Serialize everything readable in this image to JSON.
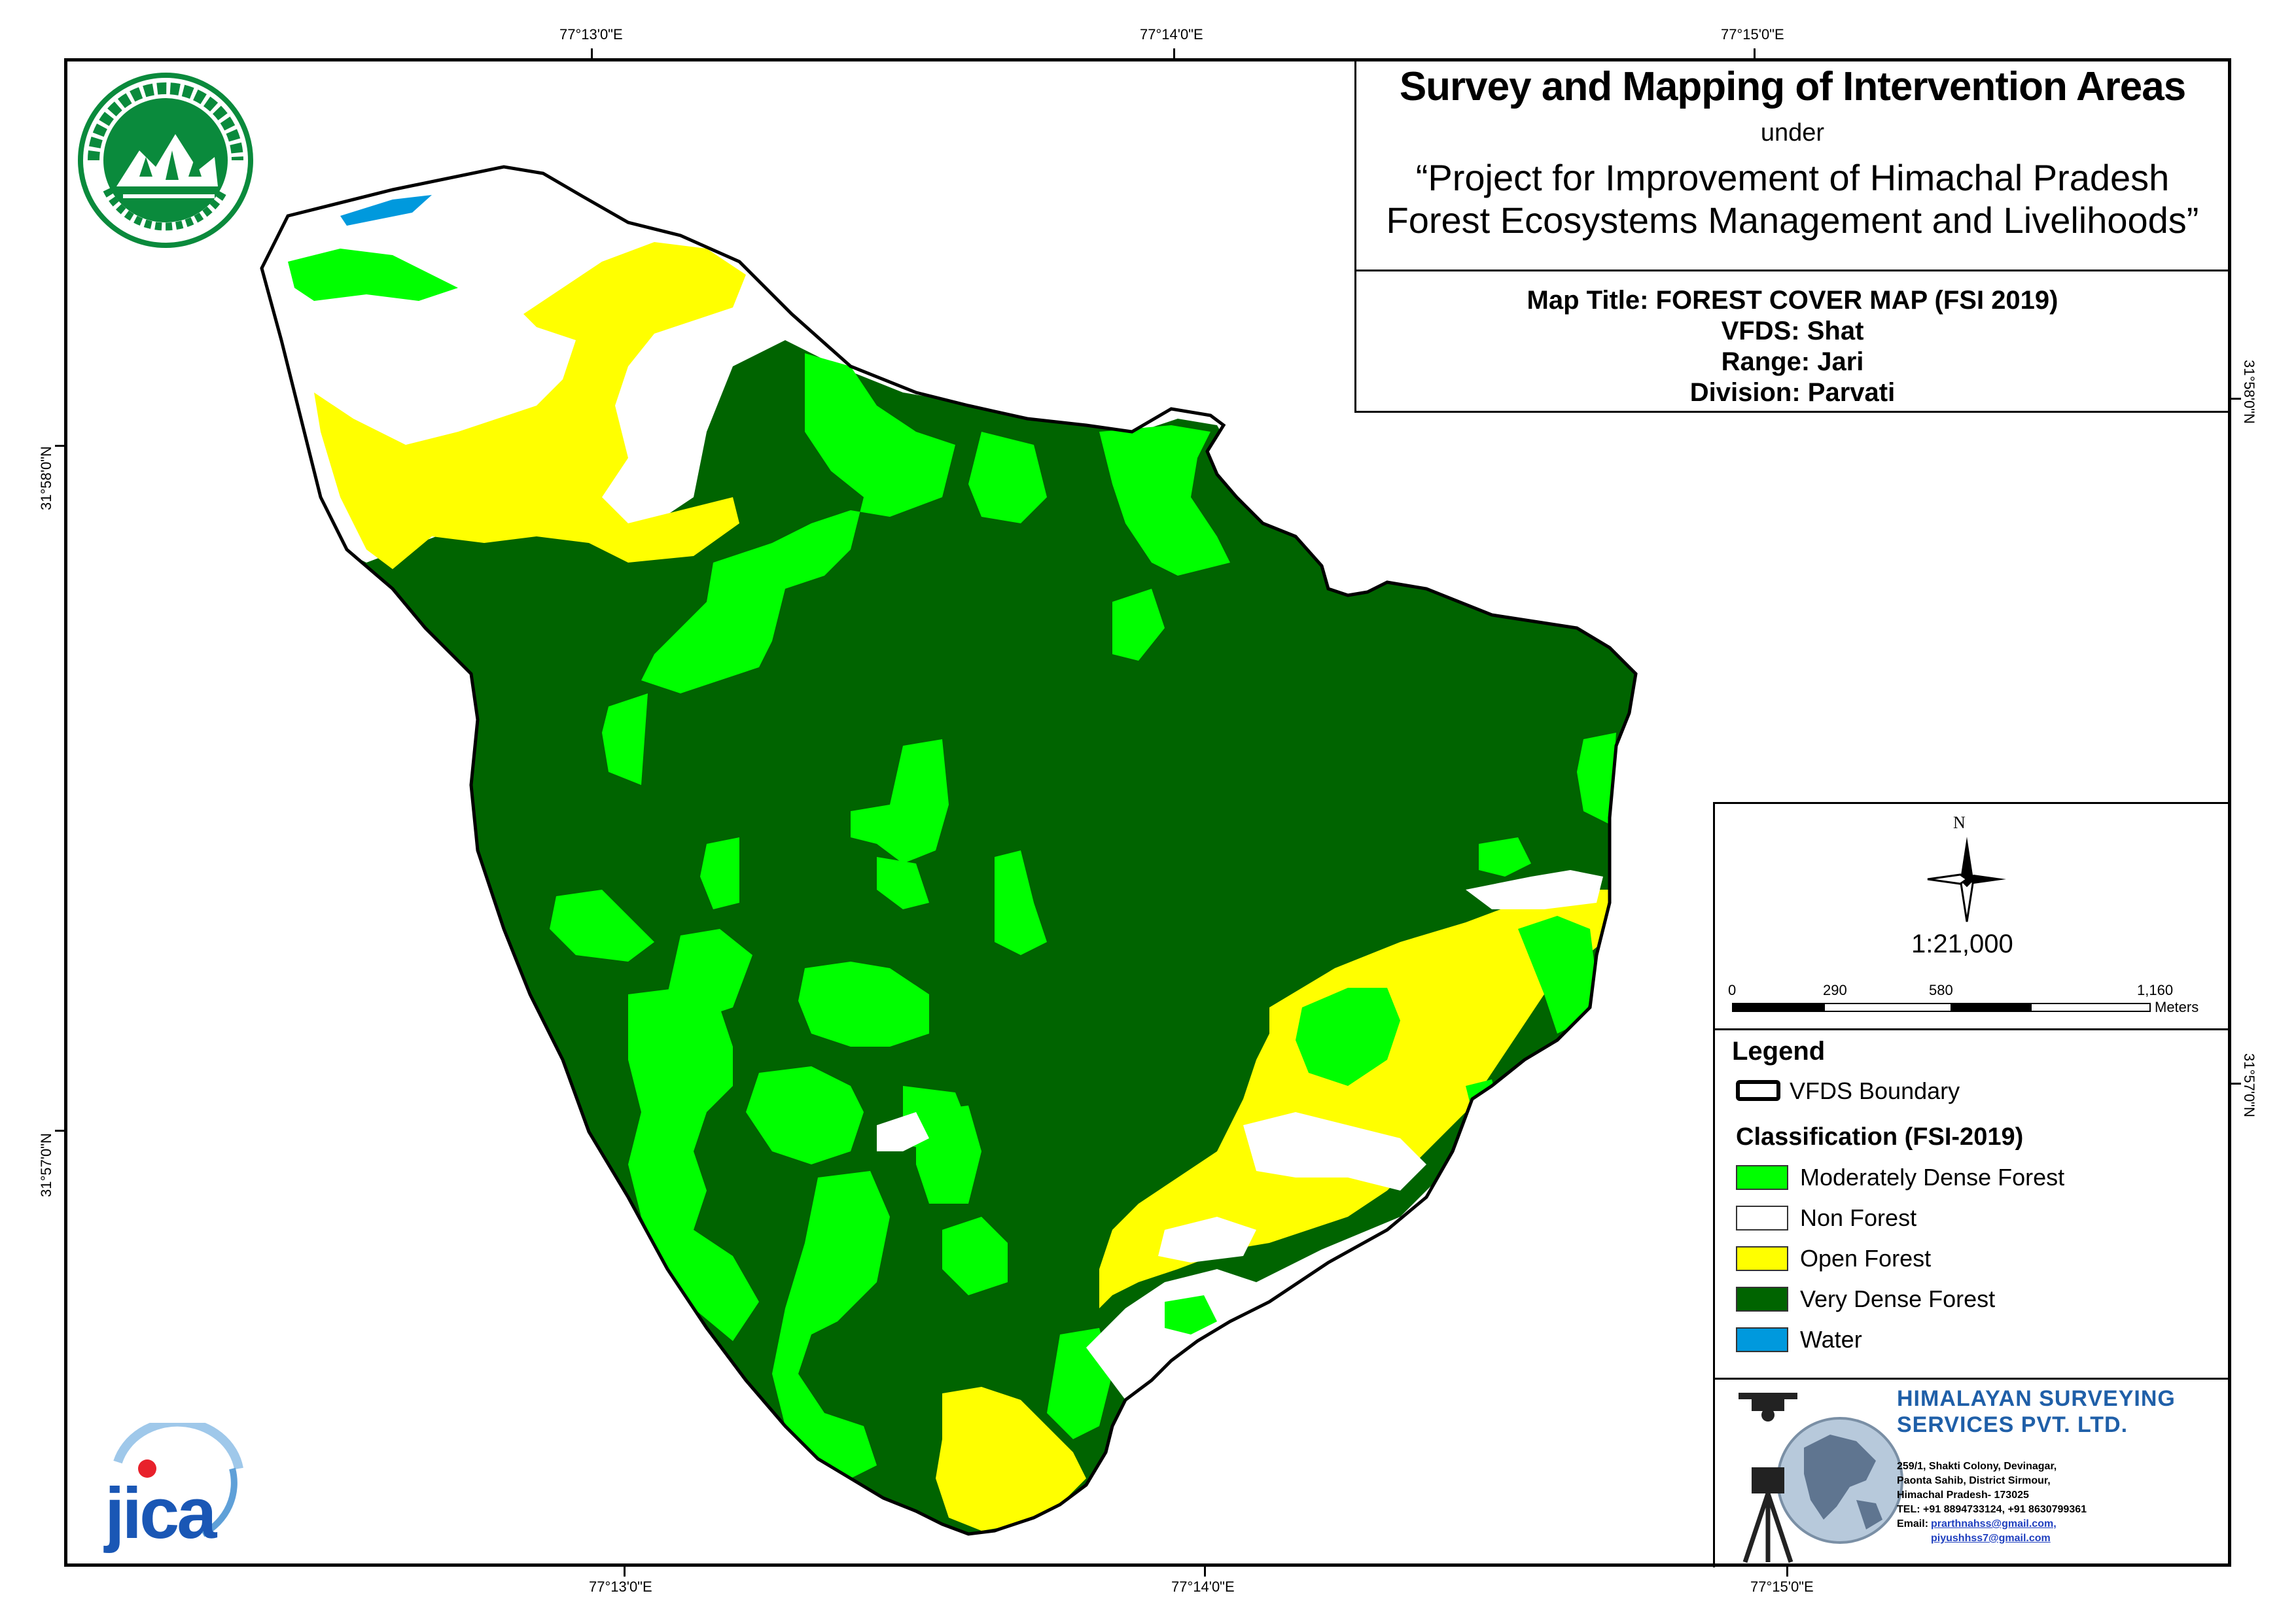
{
  "title": {
    "main": "Survey and Mapping of Intervention Areas",
    "under": "under",
    "project_line1": "“Project for Improvement of Himachal Pradesh",
    "project_line2": "Forest Ecosystems Management and Livelihoods”"
  },
  "info": {
    "map_title": "Map Title: FOREST COVER MAP (FSI 2019)",
    "vfds": "VFDS: Shat",
    "range": "Range: Jari",
    "division": "Division: Parvati"
  },
  "graticule": {
    "top": [
      "77°13'0\"E",
      "77°14'0\"E",
      "77°15'0\"E"
    ],
    "bottom": [
      "77°13'0\"E",
      "77°14'0\"E",
      "77°15'0\"E"
    ],
    "left": [
      "31°58'0\"N",
      "31°57'0\"N"
    ],
    "right": [
      "31°58'0\"N",
      "31°57'0\"N"
    ]
  },
  "north_arrow": {
    "label": "N",
    "icon": "north-arrow-icon"
  },
  "scale": {
    "ratio": "1:21,000",
    "ticks": [
      "0",
      "290",
      "580",
      "1,160"
    ],
    "unit": "Meters"
  },
  "legend": {
    "title": "Legend",
    "boundary_label": "VFDS Boundary",
    "classification_title": "Classification (FSI-2019)",
    "classes": [
      {
        "label": "Moderately Dense Forest",
        "color": "#00ff00"
      },
      {
        "label": "Non Forest",
        "color": "#ffffff"
      },
      {
        "label": "Open Forest",
        "color": "#ffff00"
      },
      {
        "label": "Very Dense Forest",
        "color": "#006400"
      },
      {
        "label": "Water",
        "color": "#0099dd"
      }
    ]
  },
  "company": {
    "name_line1": "HIMALAYAN SURVEYING",
    "name_line2": "SERVICES PVT. LTD.",
    "address1": "259/1, Shakti Colony, Devinagar,",
    "address2": "Paonta Sahib, District Sirmour,",
    "address3": "Himachal Pradesh- 173025",
    "tel": "TEL: +91 8894733124, +91 8630799361",
    "email_label": "Email:",
    "email1": "prarthnahss@gmail.com,",
    "email2": "piyushhss7@gmail.com",
    "name_color": "#1f5fa8"
  },
  "logos": {
    "forest_dept_icon": "himachal-forest-department-seal",
    "jica_text": "jica",
    "jica_color": "#1a57b5",
    "jica_dot_color": "#e8212b"
  }
}
